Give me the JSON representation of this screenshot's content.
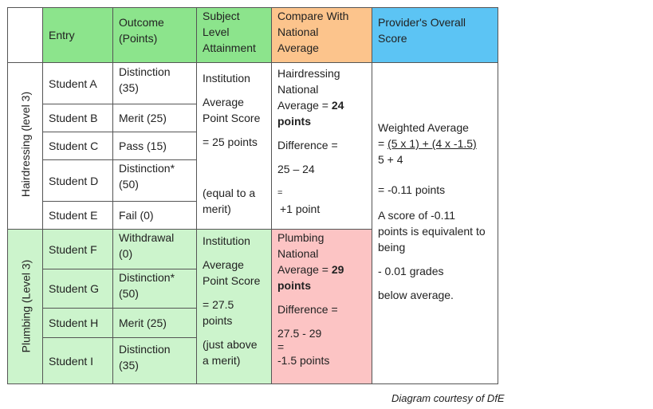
{
  "header": {
    "entry": "Entry",
    "outcome": [
      "Outcome",
      "(Points)"
    ],
    "subject": [
      "Subject",
      "Level",
      "Attainment"
    ],
    "compare": [
      "Compare With",
      "National",
      "Average"
    ],
    "provider": [
      "Provider's Overall",
      "Score"
    ]
  },
  "groups": {
    "hairdressing": "Hairdressing (level 3)",
    "plumbing": "Plumbing (Level 3)"
  },
  "students": [
    {
      "name": "Student A",
      "outcome": [
        "Distinction",
        "(35)"
      ]
    },
    {
      "name": "Student B",
      "outcome": [
        "Merit (25)"
      ]
    },
    {
      "name": "Student C",
      "outcome": [
        "Pass (15)"
      ]
    },
    {
      "name": "Student D",
      "outcome": [
        "Distinction*",
        "(50)"
      ]
    },
    {
      "name": "Student E",
      "outcome": [
        "Fail (0)"
      ]
    },
    {
      "name": "Student F",
      "outcome": [
        "Withdrawal",
        "(0)"
      ]
    },
    {
      "name": "Student G",
      "outcome": [
        "Distinction*",
        "(50)"
      ]
    },
    {
      "name": "Student H",
      "outcome": [
        "Merit (25)"
      ]
    },
    {
      "name": "Student I",
      "outcome": [
        "Distinction",
        "(35)"
      ]
    }
  ],
  "hair_attainment": {
    "line1": "Institution",
    "line2a": "Average",
    "line2b": "Point Score",
    "line3": "= 25 points",
    "line4a": "(equal to a",
    "line4b": "merit)"
  },
  "plumb_attainment": {
    "line1": "Institution",
    "line2a": "Average",
    "line2b": "Point Score",
    "line3a": "= 27.5",
    "line3b": "points",
    "line4a": "(just above",
    "line4b": "a merit)"
  },
  "hair_compare": {
    "line1": "Hairdressing",
    "line2": "National",
    "line3a": "Average = ",
    "line3b": "24",
    "line4": "points",
    "diff": "Difference =",
    "calc": "25 – 24",
    "eq": "=",
    "result": "+1 point"
  },
  "plumb_compare": {
    "line1": "Plumbing",
    "line2": "National",
    "line3a": "Average = ",
    "line3b": "29",
    "line4": "points",
    "diff": "Difference =",
    "calc": "27.5 - 29",
    "eq": "=",
    "result": "-1.5 points"
  },
  "provider": {
    "weighted": "Weighted Average",
    "formula_prefix": "= ",
    "formula": "(5 x 1) + (4 x -1.5)",
    "denominator": "5 + 4",
    "result": "= -0.11 points",
    "score1": "A score of -0.11",
    "score2": "points is equivalent to",
    "score3": "being",
    "grades": "- 0.01 grades",
    "below": "below average."
  },
  "credit": "Diagram courtesy of DfE",
  "colors": {
    "green_header": "#8ce48c",
    "green_light": "#ccf4cc",
    "peach": "#fcc48c",
    "pink": "#fcc4c4",
    "blue": "#5cc4f4"
  }
}
